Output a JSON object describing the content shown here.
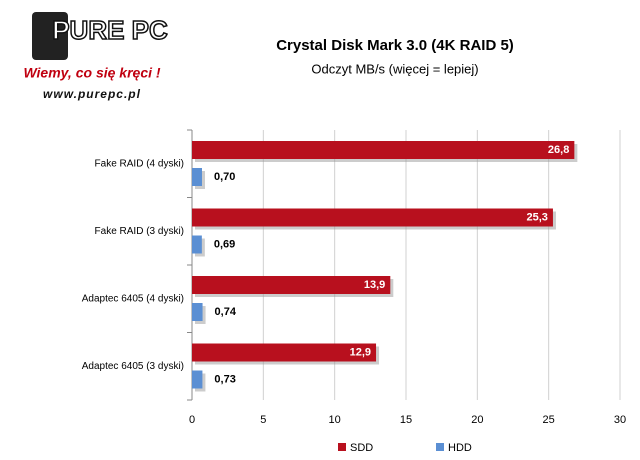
{
  "logo": {
    "brand": "PURE PC",
    "slogan": "Wiemy, co się kręci !",
    "url": "www.purepc.pl"
  },
  "chart_data": {
    "type": "hbar",
    "title": "Crystal Disk Mark 3.0 (4K RAID 5)",
    "subtitle": "Odczyt MB/s (więcej = lepiej)",
    "categories": [
      "Fake RAID (4 dyski)",
      "Fake RAID (3 dyski)",
      "Adaptec 6405 (4 dyski)",
      "Adaptec 6405 (3 dyski)"
    ],
    "series": [
      {
        "name": "SDD",
        "color": "#b8101e",
        "values": [
          26.8,
          25.3,
          13.9,
          12.9
        ],
        "value_labels": [
          "26,8",
          "25,3",
          "13,9",
          "12,9"
        ]
      },
      {
        "name": "HDD",
        "color": "#5b8fd3",
        "values": [
          0.7,
          0.69,
          0.74,
          0.73
        ],
        "value_labels": [
          "0,70",
          "0,69",
          "0,74",
          "0,73"
        ]
      }
    ],
    "xlim": [
      0,
      30
    ],
    "xticks": [
      0,
      5,
      10,
      15,
      20,
      25,
      30
    ],
    "grid": true,
    "legend": "bottom"
  }
}
